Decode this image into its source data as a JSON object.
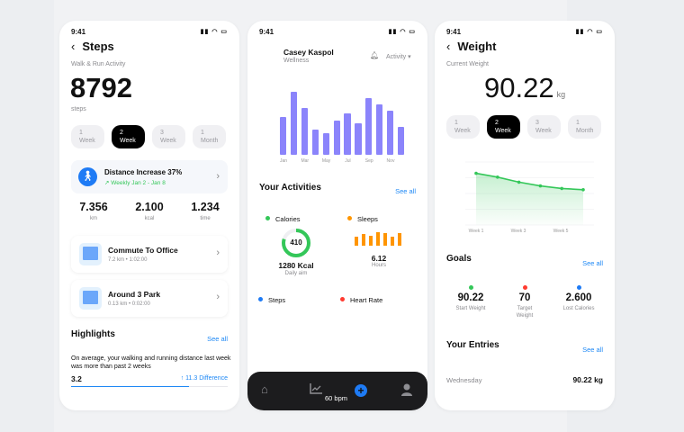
{
  "status_time": "9:41",
  "steps_screen": {
    "title": "Steps",
    "subtitle": "Walk & Run Activity",
    "count": "8792",
    "unit": "steps",
    "periods": [
      {
        "n": "1",
        "u": "Week"
      },
      {
        "n": "2",
        "u": "Week"
      },
      {
        "n": "3",
        "u": "Week"
      },
      {
        "n": "1",
        "u": "Month"
      }
    ],
    "selected_period": 1,
    "insight": {
      "title": "Distance Increase 37%",
      "detail": "↗ Weekly Jan 2 - Jan 8"
    },
    "stats": [
      {
        "value": "7.356",
        "label": "km"
      },
      {
        "value": "2.100",
        "label": "kcal"
      },
      {
        "value": "1.234",
        "label": "time"
      }
    ],
    "routes": [
      {
        "name": "Commute To Office",
        "detail": "7.2 km • 1:02:00"
      },
      {
        "name": "Around 3 Park",
        "detail": "0.13 km • 0:02:00"
      }
    ],
    "highlights": {
      "title": "Highlights",
      "see_all": "See all",
      "text": "On average, your walking and running distance last week was more than past 2 weeks",
      "value": "3.2",
      "difference": "↑ 11.3 Difference",
      "progress_percent": 75
    }
  },
  "wellness_screen": {
    "user_name": "Casey Kaspol",
    "user_subtitle": "Wellness",
    "filter_label": "Activity ▾",
    "chart_data": {
      "type": "bar",
      "categories": [
        "Jan",
        "Feb",
        "Mar",
        "Apr",
        "May",
        "Jun",
        "Jul",
        "Aug",
        "Sep",
        "Oct",
        "Nov",
        "Dec"
      ],
      "tick_labels": [
        "Jan",
        "Mar",
        "May",
        "Jul",
        "Sep",
        "Nov"
      ],
      "values": [
        125,
        210,
        157,
        83,
        73,
        115,
        137,
        104,
        189,
        168,
        146,
        94
      ],
      "color": "#8b84fb"
    },
    "activities_title": "Your Activities",
    "see_all": "See all",
    "calories": {
      "label": "Calories",
      "ring_value": "410",
      "ring_fraction": 0.8,
      "total": "1280 Kcal",
      "total_label": "Daily aim",
      "color": "#34c759"
    },
    "sleeps": {
      "label": "Sleeps",
      "bars": [
        0.6,
        0.8,
        0.7,
        0.95,
        0.85,
        0.65,
        0.9
      ],
      "value": "6.12",
      "unit": "Hours",
      "color": "#ff9500"
    },
    "steps": {
      "label": "Steps",
      "color": "#1e7bf5"
    },
    "heart_rate": {
      "label": "Heart Rate",
      "color": "#ff3b30",
      "value": "60 bpm"
    },
    "nav": [
      "home-icon",
      "chart-icon",
      "add-icon",
      "profile-icon"
    ]
  },
  "weight_screen": {
    "title": "Weight",
    "subtitle": "Current Weight",
    "value": "90.22",
    "unit": "kg",
    "periods": [
      {
        "n": "1",
        "u": "Week"
      },
      {
        "n": "2",
        "u": "Week"
      },
      {
        "n": "3",
        "u": "Week"
      },
      {
        "n": "1",
        "u": "Month"
      }
    ],
    "selected_period": 1,
    "chart_data": {
      "type": "area",
      "x_labels": [
        "Week 1",
        "Week 3",
        "Week 5"
      ],
      "values": [
        4.1,
        3.8,
        3.4,
        3.1,
        2.9,
        2.8
      ],
      "ylim": [
        0,
        5
      ],
      "grid": true,
      "color": "#34c759"
    },
    "goals": {
      "title": "Goals",
      "see_all": "See all",
      "items": [
        {
          "value": "90.22",
          "label": "Start Weight",
          "color": "#34c759"
        },
        {
          "value": "70",
          "label": "Target Weight",
          "color": "#ff3b30"
        },
        {
          "value": "2.600",
          "label": "Lost Calories",
          "color": "#1e7bf5"
        }
      ]
    },
    "entries": {
      "title": "Your Entries",
      "see_all": "See all",
      "rows": [
        {
          "day": "Wednesday",
          "value": "90.22 kg"
        }
      ]
    }
  }
}
